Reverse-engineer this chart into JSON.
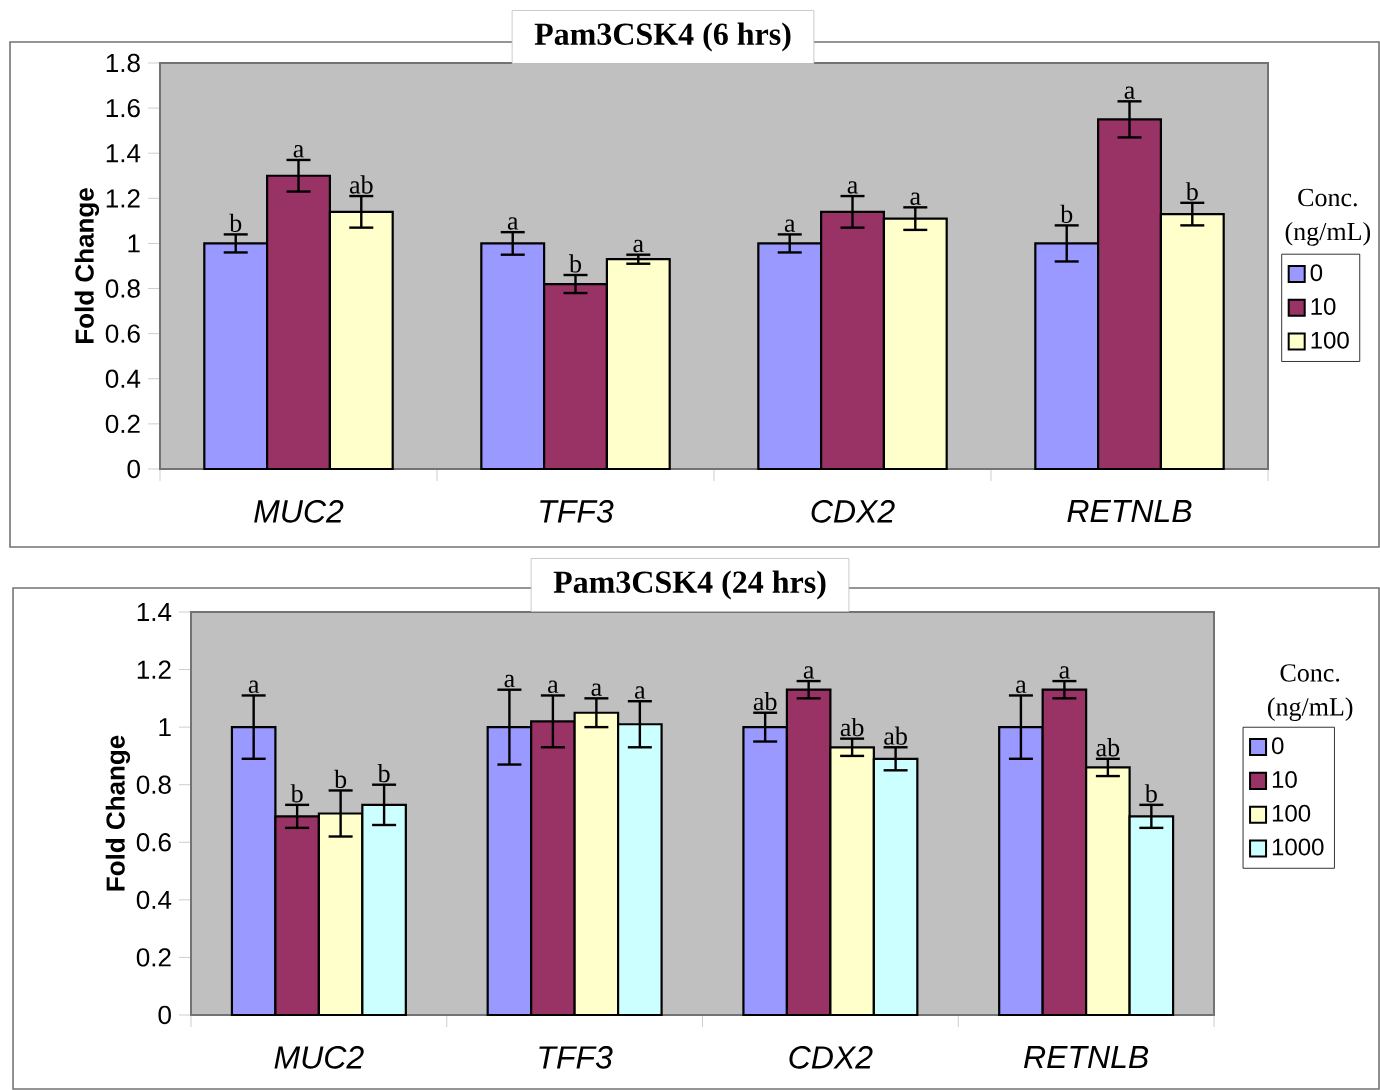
{
  "chart_data": [
    {
      "type": "bar",
      "title": "Pam3CSK4 (6 hrs)",
      "ylabel": "Fold Change",
      "legend_title": "Conc. (ng/mL)",
      "legend": "right",
      "categories": [
        "MUC2",
        "TFF3",
        "CDX2",
        "RETNLB"
      ],
      "ylim": [
        0,
        1.8
      ],
      "yticks": [
        0,
        0.2,
        0.4,
        0.6,
        0.8,
        1,
        1.2,
        1.4,
        1.6,
        1.8
      ],
      "series": [
        {
          "name": "0",
          "color": "#9999ff",
          "values": [
            1.0,
            1.0,
            1.0,
            1.0
          ],
          "errors": [
            0.04,
            0.05,
            0.04,
            0.08
          ],
          "value_labels": [
            "b",
            "a",
            "a",
            "b"
          ]
        },
        {
          "name": "10",
          "color": "#993366",
          "values": [
            1.3,
            0.82,
            1.14,
            1.55
          ],
          "errors": [
            0.07,
            0.04,
            0.07,
            0.08
          ],
          "value_labels": [
            "a",
            "b",
            "a",
            "a"
          ]
        },
        {
          "name": "100",
          "color": "#ffffcc",
          "values": [
            1.14,
            0.93,
            1.11,
            1.13
          ],
          "errors": [
            0.07,
            0.02,
            0.05,
            0.05
          ],
          "value_labels": [
            "ab",
            "a",
            "a",
            "b"
          ]
        }
      ]
    },
    {
      "type": "bar",
      "title": "Pam3CSK4 (24 hrs)",
      "ylabel": "Fold Change",
      "legend_title": "Conc. (ng/mL)",
      "legend": "right",
      "categories": [
        "MUC2",
        "TFF3",
        "CDX2",
        "RETNLB"
      ],
      "ylim": [
        0,
        1.4
      ],
      "yticks": [
        0,
        0.2,
        0.4,
        0.6,
        0.8,
        1,
        1.2,
        1.4
      ],
      "series": [
        {
          "name": "0",
          "color": "#9999ff",
          "values": [
            1.0,
            1.0,
            1.0,
            1.0
          ],
          "errors": [
            0.11,
            0.13,
            0.05,
            0.11
          ],
          "value_labels": [
            "a",
            "a",
            "ab",
            "a"
          ]
        },
        {
          "name": "10",
          "color": "#993366",
          "values": [
            0.69,
            1.02,
            1.13,
            1.13
          ],
          "errors": [
            0.04,
            0.09,
            0.03,
            0.03
          ],
          "value_labels": [
            "b",
            "a",
            "a",
            "a"
          ]
        },
        {
          "name": "100",
          "color": "#ffffcc",
          "values": [
            0.7,
            1.05,
            0.93,
            0.86
          ],
          "errors": [
            0.08,
            0.05,
            0.03,
            0.03
          ],
          "value_labels": [
            "b",
            "a",
            "ab",
            "ab"
          ]
        },
        {
          "name": "1000",
          "color": "#ccffff",
          "values": [
            0.73,
            1.01,
            0.89,
            0.69
          ],
          "errors": [
            0.07,
            0.08,
            0.04,
            0.04
          ],
          "value_labels": [
            "b",
            "a",
            "ab",
            "b"
          ]
        }
      ]
    }
  ]
}
